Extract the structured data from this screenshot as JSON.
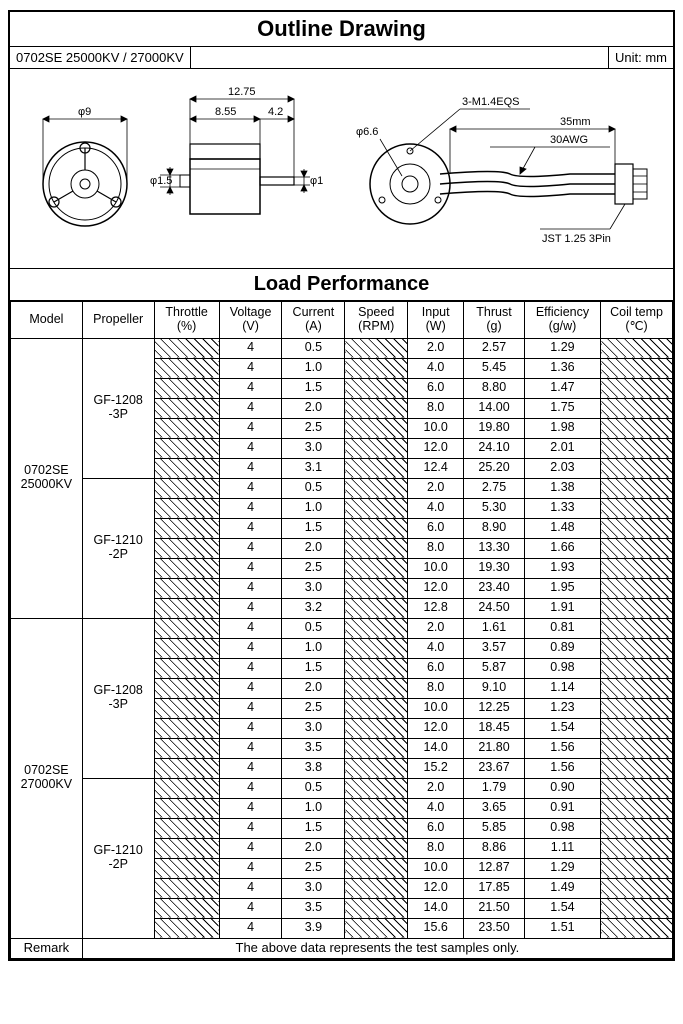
{
  "outline_title": "Outline Drawing",
  "model_header": "0702SE 25000KV / 27000KV",
  "unit_label": "Unit: mm",
  "load_title": "Load Performance",
  "drawing_labels": {
    "phi9": "φ9",
    "phi1_5": "φ1.5",
    "phi1": "φ1",
    "w12_75": "12.75",
    "w8_55": "8.55",
    "w4_2": "4.2",
    "phi6_6": "φ6.6",
    "m14": "3-M1.4EQS",
    "len35": "35mm",
    "awg": "30AWG",
    "jst": "JST 1.25 3Pin"
  },
  "columns": {
    "model": "Model",
    "propeller": "Propeller",
    "throttle": "Throttle",
    "throttle_u": "(%)",
    "voltage": "Voltage",
    "voltage_u": "(V)",
    "current": "Current",
    "current_u": "(A)",
    "speed": "Speed",
    "speed_u": "(RPM)",
    "input": "Input",
    "input_u": "(W)",
    "thrust": "Thrust",
    "thrust_u": "(g)",
    "efficiency": "Efficiency",
    "efficiency_u": "(g/w)",
    "coil": "Coil temp",
    "coil_u": "(℃)"
  },
  "models": {
    "0": "0702SE\n25000KV",
    "1": "0702SE\n27000KV"
  },
  "propellers": {
    "0": "GF-1208\n-3P",
    "1": "GF-1210\n-2P",
    "2": "GF-1208\n-3P",
    "3": "GF-1210\n-2P"
  },
  "rows": {
    "g0": [
      {
        "v": "4",
        "c": "0.5",
        "w": "2.0",
        "t": "2.57",
        "e": "1.29"
      },
      {
        "v": "4",
        "c": "1.0",
        "w": "4.0",
        "t": "5.45",
        "e": "1.36"
      },
      {
        "v": "4",
        "c": "1.5",
        "w": "6.0",
        "t": "8.80",
        "e": "1.47"
      },
      {
        "v": "4",
        "c": "2.0",
        "w": "8.0",
        "t": "14.00",
        "e": "1.75"
      },
      {
        "v": "4",
        "c": "2.5",
        "w": "10.0",
        "t": "19.80",
        "e": "1.98"
      },
      {
        "v": "4",
        "c": "3.0",
        "w": "12.0",
        "t": "24.10",
        "e": "2.01"
      },
      {
        "v": "4",
        "c": "3.1",
        "w": "12.4",
        "t": "25.20",
        "e": "2.03"
      }
    ],
    "g1": [
      {
        "v": "4",
        "c": "0.5",
        "w": "2.0",
        "t": "2.75",
        "e": "1.38"
      },
      {
        "v": "4",
        "c": "1.0",
        "w": "4.0",
        "t": "5.30",
        "e": "1.33"
      },
      {
        "v": "4",
        "c": "1.5",
        "w": "6.0",
        "t": "8.90",
        "e": "1.48"
      },
      {
        "v": "4",
        "c": "2.0",
        "w": "8.0",
        "t": "13.30",
        "e": "1.66"
      },
      {
        "v": "4",
        "c": "2.5",
        "w": "10.0",
        "t": "19.30",
        "e": "1.93"
      },
      {
        "v": "4",
        "c": "3.0",
        "w": "12.0",
        "t": "23.40",
        "e": "1.95"
      },
      {
        "v": "4",
        "c": "3.2",
        "w": "12.8",
        "t": "24.50",
        "e": "1.91"
      }
    ],
    "g2": [
      {
        "v": "4",
        "c": "0.5",
        "w": "2.0",
        "t": "1.61",
        "e": "0.81"
      },
      {
        "v": "4",
        "c": "1.0",
        "w": "4.0",
        "t": "3.57",
        "e": "0.89"
      },
      {
        "v": "4",
        "c": "1.5",
        "w": "6.0",
        "t": "5.87",
        "e": "0.98"
      },
      {
        "v": "4",
        "c": "2.0",
        "w": "8.0",
        "t": "9.10",
        "e": "1.14"
      },
      {
        "v": "4",
        "c": "2.5",
        "w": "10.0",
        "t": "12.25",
        "e": "1.23"
      },
      {
        "v": "4",
        "c": "3.0",
        "w": "12.0",
        "t": "18.45",
        "e": "1.54"
      },
      {
        "v": "4",
        "c": "3.5",
        "w": "14.0",
        "t": "21.80",
        "e": "1.56"
      },
      {
        "v": "4",
        "c": "3.8",
        "w": "15.2",
        "t": "23.67",
        "e": "1.56"
      }
    ],
    "g3": [
      {
        "v": "4",
        "c": "0.5",
        "w": "2.0",
        "t": "1.79",
        "e": "0.90"
      },
      {
        "v": "4",
        "c": "1.0",
        "w": "4.0",
        "t": "3.65",
        "e": "0.91"
      },
      {
        "v": "4",
        "c": "1.5",
        "w": "6.0",
        "t": "5.85",
        "e": "0.98"
      },
      {
        "v": "4",
        "c": "2.0",
        "w": "8.0",
        "t": "8.86",
        "e": "1.11"
      },
      {
        "v": "4",
        "c": "2.5",
        "w": "10.0",
        "t": "12.87",
        "e": "1.29"
      },
      {
        "v": "4",
        "c": "3.0",
        "w": "12.0",
        "t": "17.85",
        "e": "1.49"
      },
      {
        "v": "4",
        "c": "3.5",
        "w": "14.0",
        "t": "21.50",
        "e": "1.54"
      },
      {
        "v": "4",
        "c": "3.9",
        "w": "15.6",
        "t": "23.50",
        "e": "1.51"
      }
    ]
  },
  "remark_label": "Remark",
  "remark_text": "The above data represents the test samples only.",
  "colwidths": [
    "64",
    "64",
    "58",
    "56",
    "56",
    "56",
    "50",
    "54",
    "68",
    "64"
  ],
  "colors": {
    "line": "#000000",
    "bg": "#ffffff",
    "hatch": "#000000"
  }
}
